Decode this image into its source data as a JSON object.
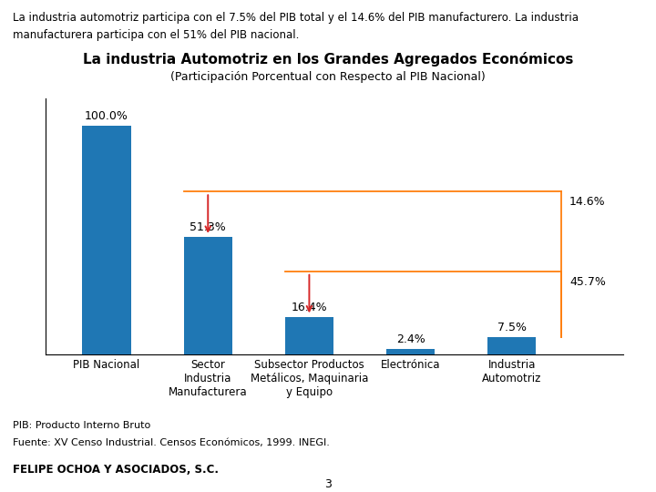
{
  "chart_data": {
    "type": "bar",
    "title": "La industria Automotriz en los Grandes Agregados Económicos",
    "subtitle": "(Participación Porcentual con Respecto al PIB Nacional)",
    "intro": [
      "La industria automotriz participa con el 7.5% del PIB total y el 14.6% del PIB manufacturero. La industria",
      "manufacturera participa con el 51% del PIB nacional."
    ],
    "categories": [
      "PIB Nacional",
      "Sector\nIndustria\nManufacturera",
      "Subsector Productos\nMetálicos, Maquinaria\ny Equipo",
      "Electrónica",
      "Industria\nAutomotriz"
    ],
    "values": [
      100.0,
      51.3,
      16.4,
      2.4,
      7.5
    ],
    "value_labels": [
      "100.0%",
      "51.3%",
      "16.4%",
      "2.4%",
      "7.5%"
    ],
    "data_labels": true,
    "ylim": [
      0,
      112
    ],
    "yticks": [],
    "tick_labels": "x",
    "grid": false,
    "annotations": [
      {
        "text": "14.6%",
        "from": "Sector\nIndustria\nManufacturera",
        "to": "Industria\nAutomotriz"
      },
      {
        "text": "45.7%",
        "from": "Subsector Productos\nMetálicos, Maquinaria\ny Equipo",
        "to": "Industria\nAutomotriz"
      }
    ],
    "footnotes": [
      "PIB: Producto Interno Bruto",
      "Fuente: XV Censo Industrial. Censos Económicos, 1999. INEGI."
    ],
    "footer": "FELIPE OCHOA Y ASOCIADOS, S.C.",
    "page": "3"
  }
}
